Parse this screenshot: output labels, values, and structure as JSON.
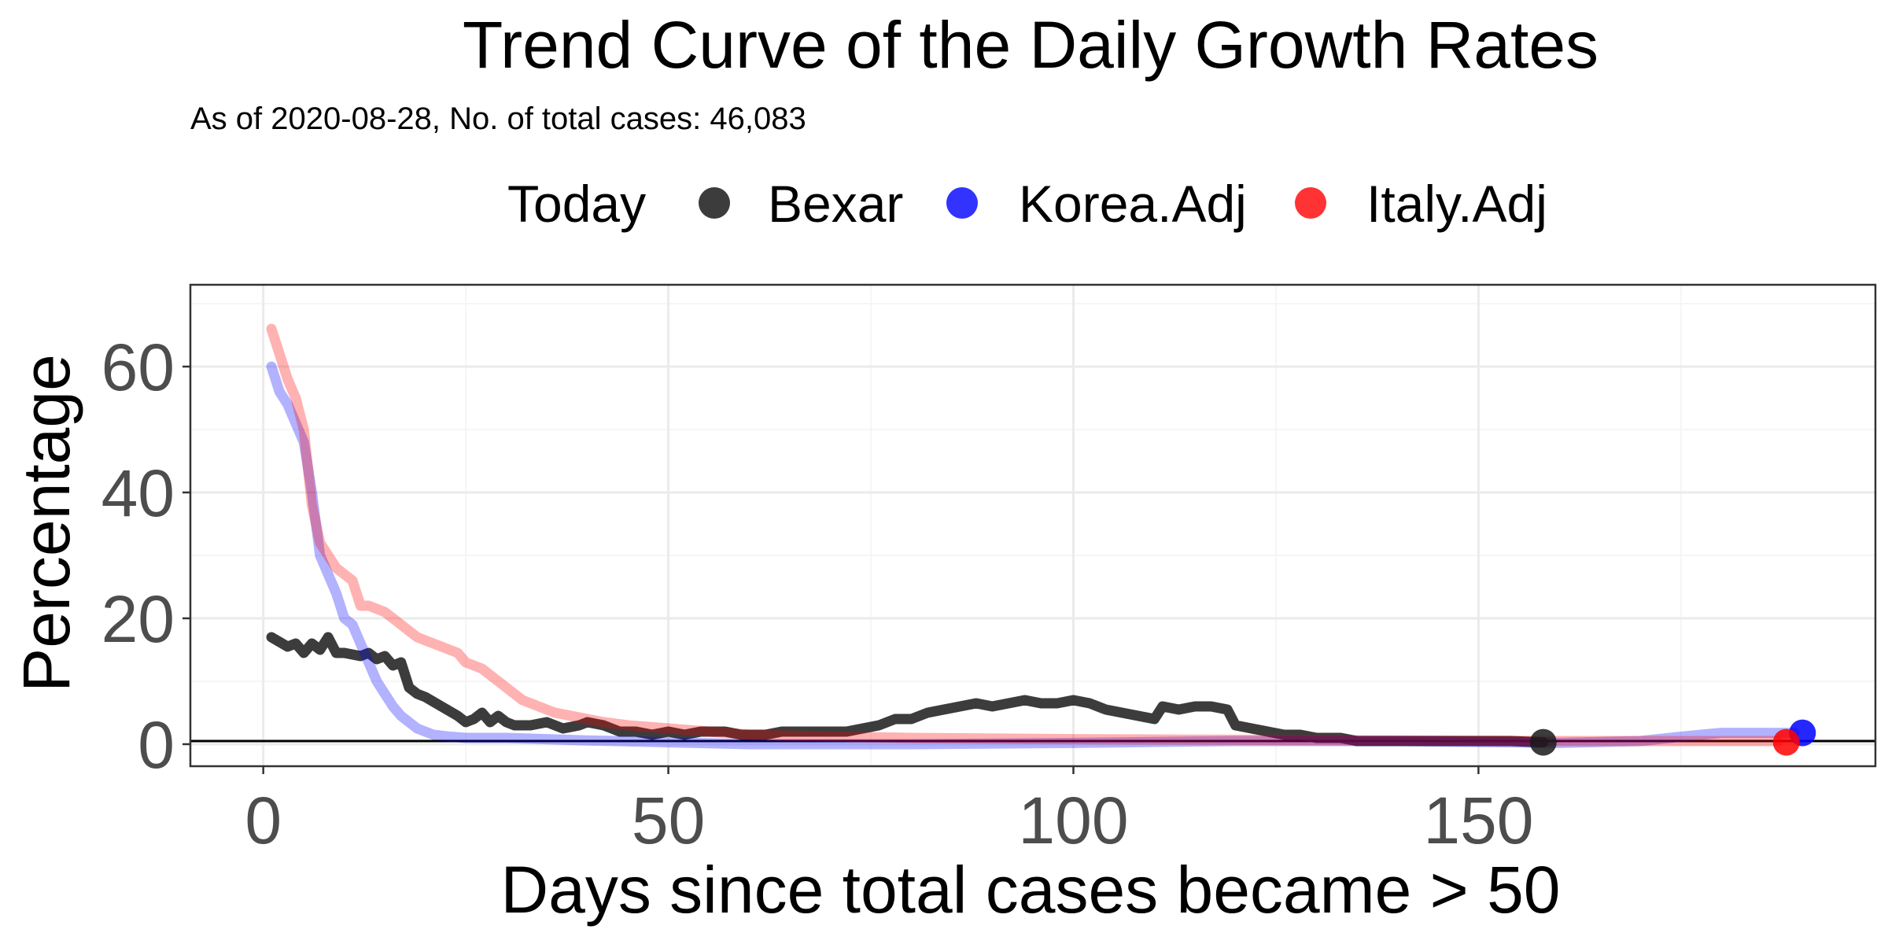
{
  "chart_data": {
    "type": "line",
    "title": "Trend Curve of the Daily Growth Rates",
    "subtitle": "As of 2020-08-28, No. of total cases: 46,083",
    "xlabel": "Days since total cases became > 50",
    "ylabel": "Percentage",
    "xlim": [
      -9,
      199
    ],
    "ylim": [
      -3.5,
      73
    ],
    "x_ticks": [
      0,
      50,
      100,
      150
    ],
    "y_ticks": [
      0,
      20,
      40,
      60
    ],
    "grid": true,
    "legend": {
      "title": "Today",
      "position": "top",
      "entries": [
        "Bexar",
        "Korea.Adj",
        "Italy.Adj"
      ]
    },
    "reference_line_y": 0.5,
    "series": [
      {
        "name": "Bexar",
        "color": "#1a1a1a",
        "x": [
          1,
          3,
          4,
          5,
          6,
          7,
          8,
          9,
          10,
          12,
          13,
          14,
          15,
          16,
          17,
          18,
          19,
          20,
          22,
          24,
          25,
          26,
          27,
          28,
          29,
          30,
          31,
          33,
          35,
          37,
          39,
          40,
          42,
          44,
          46,
          48,
          50,
          52,
          54,
          55,
          57,
          59,
          60,
          62,
          64,
          66,
          68,
          70,
          72,
          74,
          76,
          78,
          80,
          82,
          84,
          86,
          88,
          90,
          92,
          94,
          96,
          98,
          100,
          102,
          104,
          106,
          108,
          110,
          111,
          113,
          115,
          117,
          119,
          120,
          122,
          124,
          126,
          128,
          130,
          133,
          135,
          138,
          141,
          145,
          150,
          154,
          158
        ],
        "y": [
          17,
          15.5,
          16,
          14.5,
          16,
          15,
          17,
          14.5,
          14.5,
          14,
          14.5,
          13.5,
          14,
          12.5,
          13,
          9,
          8,
          7.5,
          6,
          4.5,
          3.5,
          4,
          5,
          3.5,
          4.5,
          3.5,
          3,
          3,
          3.5,
          2.5,
          3,
          3.5,
          3,
          2,
          2,
          1.5,
          2,
          1.5,
          2,
          2,
          2,
          1.5,
          1.5,
          1.5,
          2,
          2,
          2,
          2,
          2,
          2.5,
          3,
          4,
          4,
          5,
          5.5,
          6,
          6.5,
          6,
          6.5,
          7,
          6.5,
          6.5,
          7,
          6.5,
          5.5,
          5,
          4.5,
          4,
          6,
          5.5,
          6,
          6,
          5.5,
          3,
          2.5,
          2,
          1.5,
          1.5,
          1,
          1,
          0.5,
          0.5,
          0.5,
          0.5,
          0.5,
          0.5,
          0.3
        ]
      },
      {
        "name": "Korea.Adj",
        "color": "#0000ff",
        "x": [
          1,
          2,
          3,
          4,
          5,
          6,
          7,
          8,
          9,
          10,
          11,
          12,
          13,
          14,
          15,
          16,
          17,
          18,
          19,
          20,
          21,
          23,
          25,
          30,
          35,
          40,
          50,
          60,
          70,
          80,
          100,
          120,
          140,
          160,
          170,
          175,
          180,
          185,
          189
        ],
        "y": [
          60,
          56,
          54,
          51,
          48,
          40,
          30,
          27,
          24,
          20,
          19,
          16,
          13,
          10,
          8,
          6,
          4.5,
          3.5,
          2.5,
          2,
          1.5,
          1.2,
          1,
          1,
          0.8,
          0.6,
          0.3,
          0,
          0,
          0,
          0.2,
          0.5,
          0.5,
          0.2,
          0.5,
          1.2,
          1.8,
          1.8,
          1.8
        ]
      },
      {
        "name": "Italy.Adj",
        "color": "#ff0000",
        "x": [
          1,
          2,
          3,
          4,
          5,
          6,
          7,
          8,
          9,
          10,
          11,
          12,
          13,
          14,
          15,
          16,
          17,
          18,
          19,
          20,
          21,
          22,
          23,
          24,
          25,
          26,
          27,
          28,
          29,
          30,
          31,
          32,
          33,
          34,
          36,
          38,
          40,
          42,
          45,
          50,
          55,
          60,
          70,
          80,
          100,
          120,
          140,
          160,
          180,
          187
        ],
        "y": [
          66,
          62,
          58,
          55,
          50,
          38,
          32,
          30,
          28,
          27,
          26,
          22,
          22,
          21.5,
          21,
          20,
          19,
          18,
          17,
          16.5,
          16,
          15.5,
          15,
          14.5,
          13,
          12.5,
          12,
          11,
          10,
          9,
          8,
          7,
          6.5,
          6,
          5,
          4.5,
          4,
          3.5,
          3,
          2.5,
          2,
          1.5,
          1.2,
          1,
          0.8,
          0.7,
          0.6,
          0.5,
          0.5,
          0.5
        ]
      }
    ],
    "today_points": [
      {
        "series": "Bexar",
        "x": 158,
        "y": 0.3,
        "color": "#1a1a1a"
      },
      {
        "series": "Korea.Adj",
        "x": 190,
        "y": 1.8,
        "color": "#0000ff"
      },
      {
        "series": "Italy.Adj",
        "x": 188,
        "y": 0.3,
        "color": "#ff0000"
      }
    ]
  }
}
